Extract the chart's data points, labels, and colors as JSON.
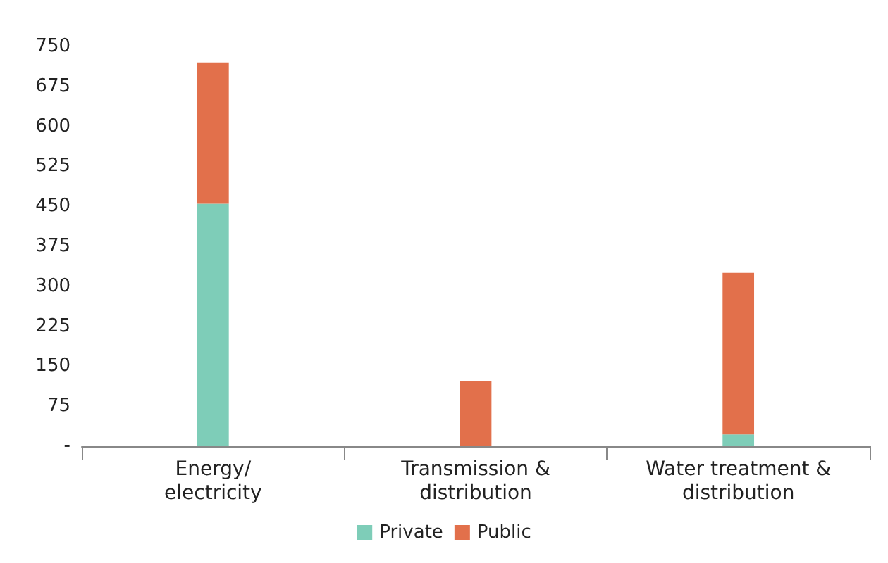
{
  "chart_data": {
    "type": "bar",
    "stacked": true,
    "categories": [
      "Energy/\nelectricity",
      "Transmission &\ndistribution",
      "Water treatment &\ndistribution"
    ],
    "series": [
      {
        "name": "Private",
        "color": "#7ecdb8",
        "values": [
          455,
          0,
          22
        ]
      },
      {
        "name": "Public",
        "color": "#e2704b",
        "values": [
          265,
          122,
          303
        ]
      }
    ],
    "ylim": [
      0,
      750
    ],
    "yticks": [
      {
        "value": 0,
        "label": "-"
      },
      75,
      150,
      225,
      300,
      375,
      450,
      525,
      600,
      675,
      750
    ],
    "grid": false,
    "legend": "bottom"
  }
}
